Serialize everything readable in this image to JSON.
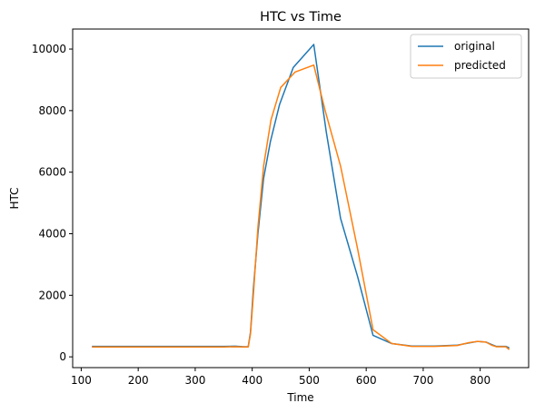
{
  "chart_data": {
    "type": "line",
    "title": "HTC vs Time",
    "xlabel": "Time",
    "ylabel": "HTC",
    "xlim": [
      85,
      885
    ],
    "ylim": [
      -350,
      10650
    ],
    "xticks": [
      100,
      200,
      300,
      400,
      500,
      600,
      700,
      800
    ],
    "yticks": [
      0,
      2000,
      4000,
      6000,
      8000,
      10000
    ],
    "grid": false,
    "legend_position": "top-right",
    "series": [
      {
        "name": "original",
        "color": "#1f77b4",
        "points": [
          [
            120,
            340
          ],
          [
            200,
            340
          ],
          [
            300,
            340
          ],
          [
            350,
            340
          ],
          [
            370,
            345
          ],
          [
            385,
            330
          ],
          [
            393,
            330
          ],
          [
            397,
            800
          ],
          [
            402,
            2200
          ],
          [
            410,
            4000
          ],
          [
            420,
            5800
          ],
          [
            432,
            7000
          ],
          [
            448,
            8200
          ],
          [
            472,
            9400
          ],
          [
            508,
            10150
          ],
          [
            530,
            7300
          ],
          [
            555,
            4500
          ],
          [
            585,
            2600
          ],
          [
            612,
            700
          ],
          [
            645,
            430
          ],
          [
            680,
            350
          ],
          [
            720,
            350
          ],
          [
            760,
            380
          ],
          [
            780,
            450
          ],
          [
            795,
            500
          ],
          [
            810,
            480
          ],
          [
            820,
            400
          ],
          [
            828,
            340
          ],
          [
            845,
            340
          ],
          [
            850,
            300
          ]
        ]
      },
      {
        "name": "predicted",
        "color": "#ff7f0e",
        "points": [
          [
            120,
            320
          ],
          [
            200,
            320
          ],
          [
            300,
            320
          ],
          [
            350,
            320
          ],
          [
            370,
            330
          ],
          [
            385,
            320
          ],
          [
            393,
            320
          ],
          [
            397,
            750
          ],
          [
            402,
            2000
          ],
          [
            410,
            4200
          ],
          [
            420,
            6200
          ],
          [
            433,
            7700
          ],
          [
            450,
            8750
          ],
          [
            475,
            9250
          ],
          [
            508,
            9480
          ],
          [
            528,
            8000
          ],
          [
            555,
            6200
          ],
          [
            585,
            3500
          ],
          [
            612,
            880
          ],
          [
            645,
            430
          ],
          [
            680,
            340
          ],
          [
            720,
            340
          ],
          [
            760,
            370
          ],
          [
            780,
            460
          ],
          [
            795,
            500
          ],
          [
            810,
            480
          ],
          [
            820,
            380
          ],
          [
            828,
            330
          ],
          [
            845,
            330
          ],
          [
            850,
            250
          ]
        ]
      }
    ]
  }
}
